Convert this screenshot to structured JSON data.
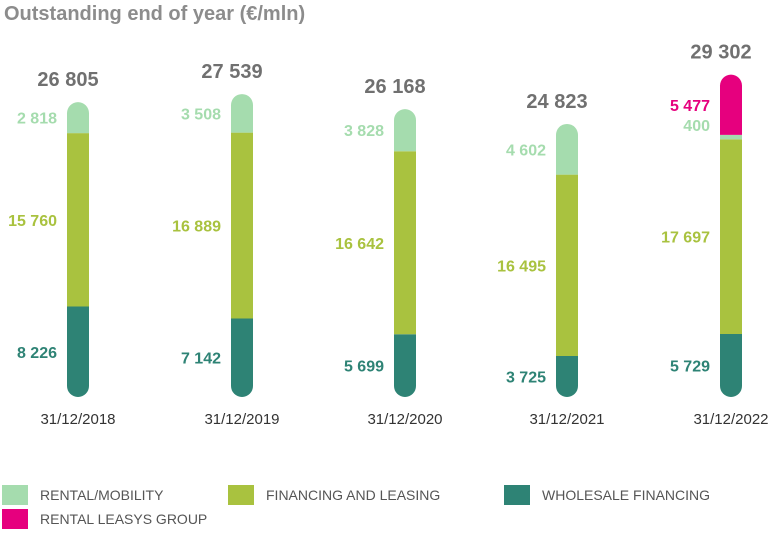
{
  "chart_data": {
    "type": "bar",
    "title": "Outstanding end of year (€/mln)",
    "categories": [
      "31/12/2018",
      "31/12/2019",
      "31/12/2020",
      "31/12/2021",
      "31/12/2022"
    ],
    "totals": [
      "26 805",
      "27 539",
      "26 168",
      "24 823",
      "29 302"
    ],
    "total_values": [
      26805,
      27539,
      26168,
      24823,
      29302
    ],
    "stacked": true,
    "series": [
      {
        "key": "wholesale",
        "name": "WHOLESALE FINANCING",
        "color": "#2e8375",
        "values": [
          8226,
          7142,
          5699,
          3725,
          5729
        ],
        "labels": [
          "8 226",
          "7 142",
          "5 699",
          "3 725",
          "5 729"
        ]
      },
      {
        "key": "financing",
        "name": "FINANCING AND LEASING",
        "color": "#a9c23f",
        "values": [
          15760,
          16889,
          16642,
          16495,
          17697
        ],
        "labels": [
          "15 760",
          "16 889",
          "16 642",
          "16 495",
          "17 697"
        ]
      },
      {
        "key": "rental",
        "name": "RENTAL/MOBILITY",
        "color": "#a5dcae",
        "values": [
          2818,
          3508,
          3828,
          4602,
          400
        ],
        "labels": [
          "2 818",
          "3 508",
          "3 828",
          "4 602",
          "400"
        ]
      },
      {
        "key": "leasys",
        "name": "RENTAL LEASYS GROUP",
        "color": "#e6007e",
        "values": [
          0,
          0,
          0,
          0,
          5477
        ],
        "labels": [
          "",
          "",
          "",
          "",
          "5 477"
        ]
      }
    ],
    "legend_placement": "bottom",
    "grid": false
  },
  "legend": [
    {
      "label": "RENTAL/MOBILITY",
      "color": "#a5dcae"
    },
    {
      "label": "FINANCING AND LEASING",
      "color": "#a9c23f"
    },
    {
      "label": "WHOLESALE FINANCING",
      "color": "#2e8375"
    },
    {
      "label": "RENTAL LEASYS GROUP",
      "color": "#e6007e"
    }
  ],
  "colors": {
    "total_label": "#707070",
    "date_label": "#333333"
  }
}
